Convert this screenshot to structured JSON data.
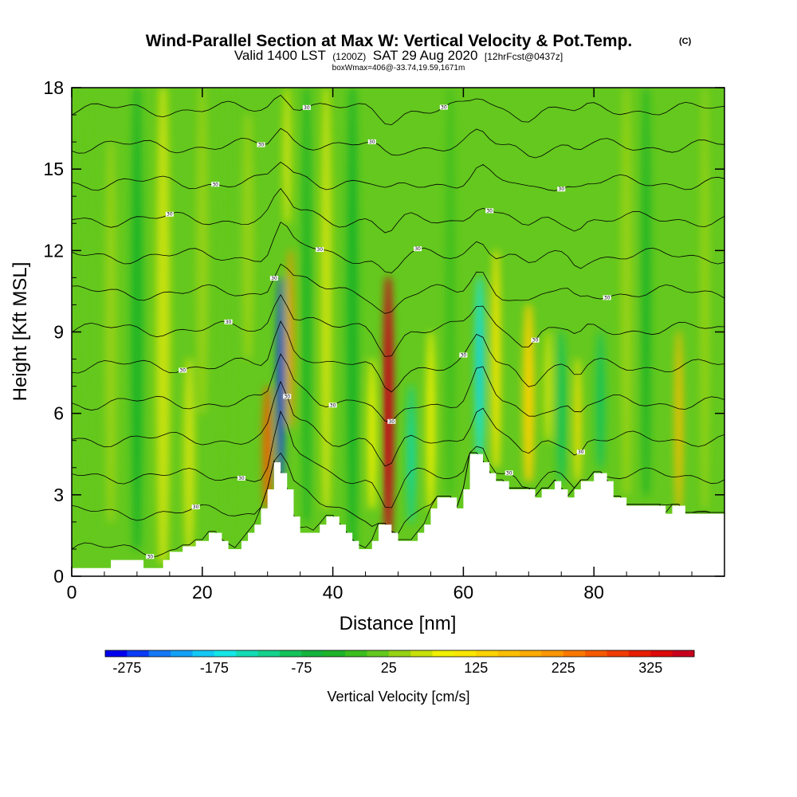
{
  "title": {
    "main": "Wind-Parallel Section at Max W: Vertical Velocity & Pot.Temp.",
    "mark": "(C)",
    "valid_a": "Valid 1400 LST",
    "valid_b": "(1200Z)",
    "valid_c": "SAT 29 Aug 2020",
    "valid_d": "[12hrFcst@0437z]",
    "box_info": "boxWmax=406@-33.74,19.59,1671m"
  },
  "chart_data": {
    "type": "heatmap",
    "xlabel": "Distance [nm]",
    "ylabel": "Height [Kft MSL]",
    "xlim": [
      0,
      100
    ],
    "ylim": [
      0,
      18
    ],
    "x_ticks": [
      0,
      20,
      40,
      60,
      80
    ],
    "y_ticks": [
      0,
      3,
      6,
      9,
      12,
      15,
      18
    ],
    "grid": false,
    "colorbar": {
      "title": "Vertical Velocity [cm/s]",
      "labels": [
        "-275",
        "-175",
        "-75",
        "25",
        "125",
        "225",
        "325"
      ],
      "min": -300,
      "max": 375,
      "step": 25,
      "colors": [
        "#0000ee",
        "#0a3cf5",
        "#1478f5",
        "#14a0f5",
        "#14c8f5",
        "#14e6e6",
        "#14dcb4",
        "#14d28c",
        "#14c35a",
        "#14b43c",
        "#1eb428",
        "#3cbe1e",
        "#64c81e",
        "#96d214",
        "#c8e10a",
        "#f0f000",
        "#fae600",
        "#fad200",
        "#fabe00",
        "#faaa00",
        "#fa9600",
        "#fa7800",
        "#f55a00",
        "#f03c00",
        "#e61e00",
        "#dc0a0a",
        "#c8001e"
      ],
      "background_value": 0
    },
    "terrain_profile_kft": [
      [
        0,
        0.3
      ],
      [
        6,
        0.3
      ],
      [
        6,
        0.6
      ],
      [
        11,
        0.6
      ],
      [
        11,
        0.3
      ],
      [
        14,
        0.3
      ],
      [
        14,
        0.6
      ],
      [
        15,
        0.6
      ],
      [
        15,
        0.9
      ],
      [
        17,
        0.9
      ],
      [
        17,
        1.1
      ],
      [
        19,
        1.1
      ],
      [
        19,
        1.3
      ],
      [
        21,
        1.3
      ],
      [
        21,
        1.6
      ],
      [
        23,
        1.6
      ],
      [
        23,
        1.3
      ],
      [
        24,
        1.3
      ],
      [
        24,
        1.0
      ],
      [
        26,
        1.0
      ],
      [
        26,
        1.3
      ],
      [
        27,
        1.3
      ],
      [
        27,
        1.6
      ],
      [
        28,
        1.6
      ],
      [
        28,
        1.9
      ],
      [
        29,
        1.9
      ],
      [
        29,
        2.5
      ],
      [
        30,
        2.5
      ],
      [
        30,
        3.2
      ],
      [
        31,
        3.2
      ],
      [
        31,
        4.2
      ],
      [
        32,
        4.2
      ],
      [
        32,
        3.8
      ],
      [
        33,
        3.8
      ],
      [
        33,
        3.2
      ],
      [
        34,
        3.2
      ],
      [
        34,
        2.2
      ],
      [
        35,
        2.2
      ],
      [
        35,
        1.6
      ],
      [
        38,
        1.6
      ],
      [
        38,
        1.9
      ],
      [
        39,
        1.9
      ],
      [
        39,
        2.2
      ],
      [
        41,
        2.2
      ],
      [
        41,
        1.9
      ],
      [
        42,
        1.9
      ],
      [
        42,
        1.6
      ],
      [
        43,
        1.6
      ],
      [
        43,
        1.3
      ],
      [
        44,
        1.3
      ],
      [
        44,
        1.0
      ],
      [
        46,
        1.0
      ],
      [
        46,
        1.3
      ],
      [
        47,
        1.3
      ],
      [
        47,
        1.9
      ],
      [
        49,
        1.9
      ],
      [
        49,
        1.6
      ],
      [
        50,
        1.6
      ],
      [
        50,
        1.3
      ],
      [
        53,
        1.3
      ],
      [
        53,
        1.6
      ],
      [
        54,
        1.6
      ],
      [
        54,
        1.9
      ],
      [
        55,
        1.9
      ],
      [
        55,
        2.5
      ],
      [
        56,
        2.5
      ],
      [
        56,
        2.9
      ],
      [
        59,
        2.9
      ],
      [
        59,
        2.5
      ],
      [
        60,
        2.5
      ],
      [
        60,
        3.2
      ],
      [
        61,
        3.2
      ],
      [
        61,
        4.5
      ],
      [
        63,
        4.5
      ],
      [
        63,
        4.2
      ],
      [
        64,
        4.2
      ],
      [
        64,
        3.8
      ],
      [
        65,
        3.8
      ],
      [
        65,
        3.5
      ],
      [
        67,
        3.5
      ],
      [
        67,
        3.2
      ],
      [
        71,
        3.2
      ],
      [
        71,
        2.9
      ],
      [
        72,
        2.9
      ],
      [
        72,
        3.2
      ],
      [
        74,
        3.2
      ],
      [
        74,
        3.5
      ],
      [
        75,
        3.5
      ],
      [
        75,
        3.2
      ],
      [
        76,
        3.2
      ],
      [
        76,
        2.9
      ],
      [
        77,
        2.9
      ],
      [
        77,
        3.2
      ],
      [
        78,
        3.2
      ],
      [
        78,
        3.5
      ],
      [
        80,
        3.5
      ],
      [
        80,
        3.8
      ],
      [
        82,
        3.8
      ],
      [
        82,
        3.5
      ],
      [
        83,
        3.5
      ],
      [
        83,
        2.9
      ],
      [
        85,
        2.9
      ],
      [
        85,
        2.6
      ],
      [
        91,
        2.6
      ],
      [
        91,
        2.3
      ],
      [
        92,
        2.3
      ],
      [
        92,
        2.6
      ],
      [
        94,
        2.6
      ],
      [
        94,
        2.3
      ],
      [
        100,
        2.3
      ]
    ],
    "vertical_velocity_features": [
      {
        "x": 2,
        "z0": 1.5,
        "z1": 18,
        "w": 2.5,
        "value": 20
      },
      {
        "x": 6,
        "z0": 2,
        "z1": 16,
        "w": 2,
        "value": 40
      },
      {
        "x": 10,
        "z0": 1,
        "z1": 18,
        "w": 2,
        "value": -40
      },
      {
        "x": 14,
        "z0": 0.5,
        "z1": 18,
        "w": 2.5,
        "value": 50
      },
      {
        "x": 18,
        "z0": 1,
        "z1": 8,
        "w": 2,
        "value": 50
      },
      {
        "x": 20,
        "z0": 6,
        "z1": 18,
        "w": 2,
        "value": 40
      },
      {
        "x": 24,
        "z0": 1.5,
        "z1": 18,
        "w": 2,
        "value": 20
      },
      {
        "x": 27,
        "z0": 8,
        "z1": 17,
        "w": 2,
        "value": 30
      },
      {
        "x": 30,
        "z0": 2.5,
        "z1": 7,
        "w": 1.5,
        "value": 250
      },
      {
        "x": 32,
        "z0": 3.5,
        "z1": 11,
        "w": 1.2,
        "value": -275
      },
      {
        "x": 33.5,
        "z0": 5.5,
        "z1": 12,
        "w": 1.2,
        "value": 200
      },
      {
        "x": 33,
        "z0": 13,
        "z1": 18,
        "w": 1.5,
        "value": 60
      },
      {
        "x": 36,
        "z0": 2,
        "z1": 18,
        "w": 1.5,
        "value": -50
      },
      {
        "x": 39,
        "z0": 2.5,
        "z1": 18,
        "w": 2,
        "value": 50
      },
      {
        "x": 43,
        "z0": 1,
        "z1": 18,
        "w": 2,
        "value": -40
      },
      {
        "x": 46,
        "z0": 2.5,
        "z1": 8,
        "w": 1.5,
        "value": 80
      },
      {
        "x": 48.5,
        "z0": 1.5,
        "z1": 11,
        "w": 1.8,
        "value": 350
      },
      {
        "x": 52,
        "z0": 2,
        "z1": 7,
        "w": 1.5,
        "value": -120
      },
      {
        "x": 55,
        "z0": 2.5,
        "z1": 9,
        "w": 1.5,
        "value": 90
      },
      {
        "x": 58,
        "z0": 3,
        "z1": 18,
        "w": 1.5,
        "value": -20
      },
      {
        "x": 62.5,
        "z0": 4.5,
        "z1": 11,
        "w": 1.5,
        "value": -175
      },
      {
        "x": 65,
        "z0": 4,
        "z1": 12,
        "w": 1.5,
        "value": 100
      },
      {
        "x": 70,
        "z0": 3.5,
        "z1": 10,
        "w": 2,
        "value": 140
      },
      {
        "x": 73,
        "z0": 5,
        "z1": 9,
        "w": 1.5,
        "value": 60
      },
      {
        "x": 75,
        "z0": 3.5,
        "z1": 9,
        "w": 1.5,
        "value": -100
      },
      {
        "x": 77.5,
        "z0": 3.5,
        "z1": 8,
        "w": 1.2,
        "value": 120
      },
      {
        "x": 81,
        "z0": 4,
        "z1": 9,
        "w": 1.5,
        "value": -90
      },
      {
        "x": 85,
        "z0": 3,
        "z1": 18,
        "w": 2,
        "value": 40
      },
      {
        "x": 88,
        "z0": 3,
        "z1": 18,
        "w": 1.5,
        "value": -30
      },
      {
        "x": 93,
        "z0": 2.5,
        "z1": 9,
        "w": 1.3,
        "value": 150
      },
      {
        "x": 97,
        "z0": 2.5,
        "z1": 18,
        "w": 1.5,
        "value": 40
      }
    ],
    "theta_contours": {
      "levels": 15,
      "base_kft": 1.0,
      "spacing_kft": 1.35,
      "label_text": "30"
    }
  }
}
